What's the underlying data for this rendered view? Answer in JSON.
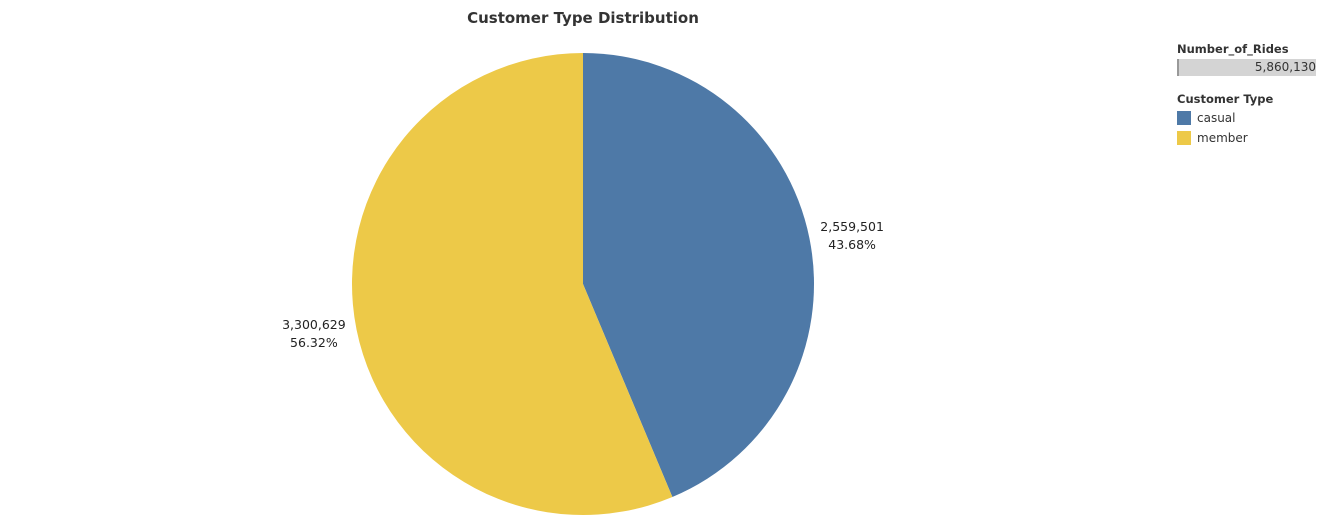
{
  "chart_data": {
    "type": "pie",
    "title": "Customer Type Distribution",
    "size_legend": {
      "title": "Number_of_Rides",
      "value_label": "5,860,130"
    },
    "color_legend_title": "Customer Type",
    "slices": [
      {
        "category": "casual",
        "value": 2559501,
        "value_label": "2,559,501",
        "percent_label": "43.68%",
        "color": "#4e79a7"
      },
      {
        "category": "member",
        "value": 3300629,
        "value_label": "3,300,629",
        "percent_label": "56.32%",
        "color": "#edc948"
      }
    ]
  }
}
